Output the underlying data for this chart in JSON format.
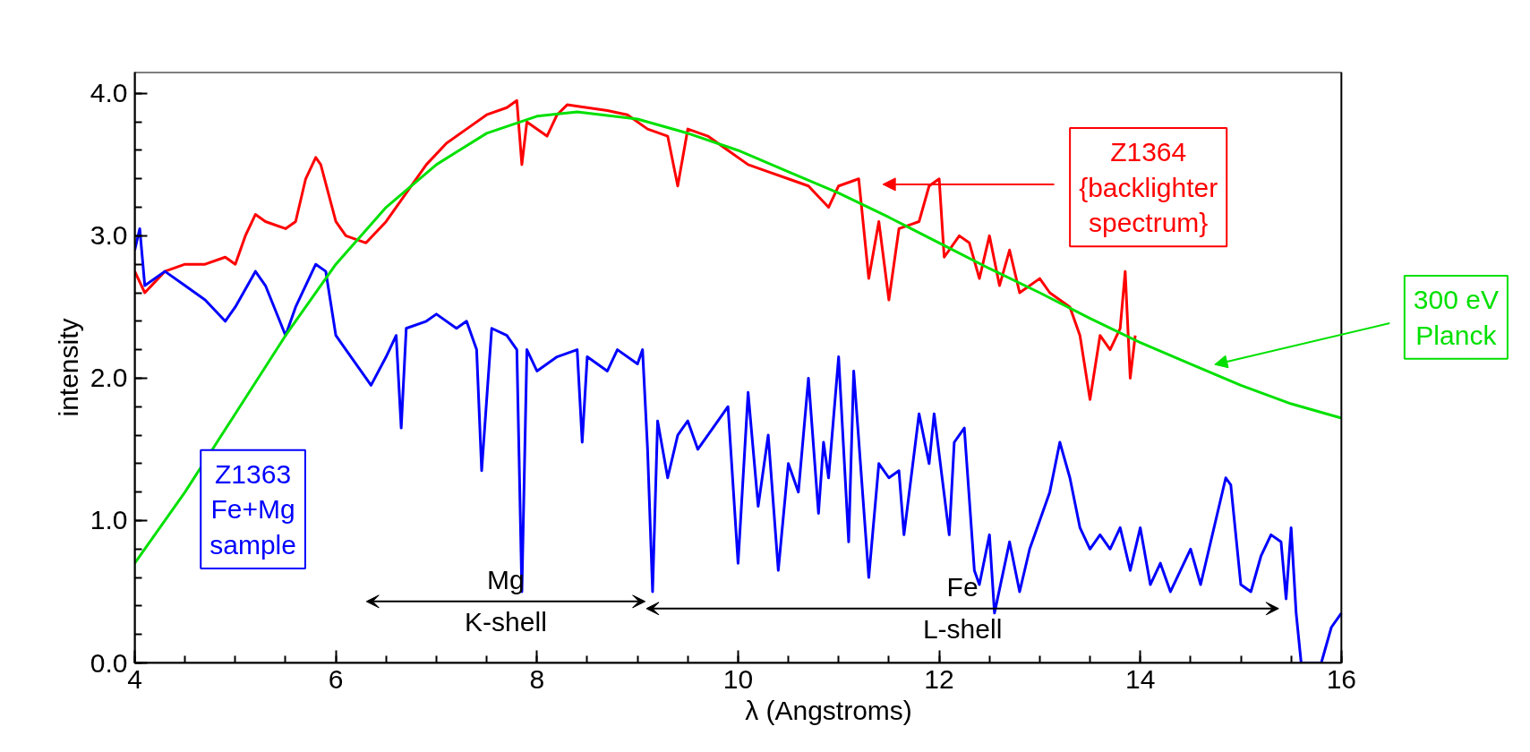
{
  "chart_data": {
    "type": "line",
    "xlabel": "λ (Angstroms)",
    "ylabel": "intensity",
    "xlim": [
      4,
      16
    ],
    "ylim": [
      0,
      4.15
    ],
    "xticks": [
      4,
      6,
      8,
      10,
      12,
      14,
      16
    ],
    "yticks": [
      {
        "value": 0,
        "label": "0.0"
      },
      {
        "value": 1,
        "label": "1.0"
      },
      {
        "value": 2,
        "label": "2.0"
      },
      {
        "value": 3,
        "label": "3.0"
      },
      {
        "value": 4,
        "label": "4.0"
      }
    ],
    "grid": false,
    "marker": "none",
    "line_style": "solid",
    "series": [
      {
        "color": "#ff0000",
        "x": [
          4.0,
          4.1,
          4.3,
          4.5,
          4.7,
          4.9,
          5.0,
          5.1,
          5.2,
          5.3,
          5.5,
          5.6,
          5.7,
          5.8,
          5.85,
          6.0,
          6.1,
          6.3,
          6.5,
          6.7,
          6.9,
          7.1,
          7.3,
          7.5,
          7.7,
          7.8,
          7.85,
          7.9,
          8.1,
          8.2,
          8.3,
          8.5,
          8.7,
          8.9,
          9.1,
          9.3,
          9.4,
          9.5,
          9.7,
          9.9,
          10.1,
          10.3,
          10.5,
          10.7,
          10.9,
          11.0,
          11.2,
          11.3,
          11.4,
          11.5,
          11.6,
          11.8,
          11.9,
          12.0,
          12.05,
          12.2,
          12.3,
          12.4,
          12.5,
          12.6,
          12.7,
          12.8,
          13.0,
          13.1,
          13.3,
          13.4,
          13.5,
          13.6,
          13.7,
          13.8,
          13.85,
          13.9,
          13.95
        ],
        "values": [
          2.75,
          2.6,
          2.75,
          2.8,
          2.8,
          2.85,
          2.8,
          3.0,
          3.15,
          3.1,
          3.05,
          3.1,
          3.4,
          3.55,
          3.5,
          3.1,
          3.0,
          2.95,
          3.1,
          3.3,
          3.5,
          3.65,
          3.75,
          3.85,
          3.9,
          3.95,
          3.5,
          3.8,
          3.7,
          3.85,
          3.92,
          3.9,
          3.88,
          3.85,
          3.75,
          3.7,
          3.35,
          3.75,
          3.7,
          3.6,
          3.5,
          3.45,
          3.4,
          3.35,
          3.2,
          3.35,
          3.4,
          2.7,
          3.1,
          2.55,
          3.05,
          3.1,
          3.35,
          3.4,
          2.85,
          3.0,
          2.95,
          2.7,
          3.0,
          2.65,
          2.9,
          2.6,
          2.7,
          2.6,
          2.5,
          2.3,
          1.85,
          2.3,
          2.2,
          2.35,
          2.75,
          2.0,
          2.3
        ]
      },
      {
        "color": "#0000ff",
        "x": [
          4.0,
          4.05,
          4.1,
          4.3,
          4.5,
          4.7,
          4.9,
          5.0,
          5.2,
          5.3,
          5.5,
          5.6,
          5.8,
          5.9,
          6.0,
          6.1,
          6.3,
          6.35,
          6.5,
          6.6,
          6.65,
          6.7,
          6.9,
          7.0,
          7.2,
          7.3,
          7.4,
          7.45,
          7.55,
          7.7,
          7.8,
          7.85,
          7.9,
          8.0,
          8.2,
          8.4,
          8.45,
          8.5,
          8.7,
          8.8,
          9.0,
          9.05,
          9.1,
          9.15,
          9.2,
          9.3,
          9.4,
          9.5,
          9.6,
          9.8,
          9.9,
          10.0,
          10.1,
          10.2,
          10.3,
          10.4,
          10.5,
          10.6,
          10.7,
          10.8,
          10.85,
          10.9,
          11.0,
          11.1,
          11.15,
          11.3,
          11.4,
          11.5,
          11.6,
          11.65,
          11.8,
          11.9,
          11.95,
          12.1,
          12.15,
          12.25,
          12.35,
          12.4,
          12.5,
          12.55,
          12.7,
          12.8,
          12.9,
          13.1,
          13.2,
          13.3,
          13.4,
          13.5,
          13.6,
          13.7,
          13.8,
          13.9,
          14.0,
          14.1,
          14.2,
          14.3,
          14.5,
          14.6,
          14.7,
          14.85,
          14.9,
          15.0,
          15.1,
          15.2,
          15.3,
          15.4,
          15.45,
          15.5,
          15.55,
          15.6,
          15.7,
          15.8,
          15.9,
          16.0
        ],
        "values": [
          2.9,
          3.05,
          2.65,
          2.75,
          2.65,
          2.55,
          2.4,
          2.5,
          2.75,
          2.65,
          2.3,
          2.5,
          2.8,
          2.75,
          2.3,
          2.2,
          2.0,
          1.95,
          2.15,
          2.3,
          1.65,
          2.35,
          2.4,
          2.45,
          2.35,
          2.4,
          2.2,
          1.35,
          2.35,
          2.3,
          2.2,
          0.5,
          2.2,
          2.05,
          2.15,
          2.2,
          1.55,
          2.15,
          2.05,
          2.2,
          2.1,
          2.2,
          1.5,
          0.5,
          1.7,
          1.3,
          1.6,
          1.7,
          1.5,
          1.7,
          1.8,
          0.7,
          1.9,
          1.1,
          1.6,
          0.65,
          1.4,
          1.2,
          2.0,
          1.05,
          1.55,
          1.3,
          2.15,
          0.85,
          2.05,
          0.6,
          1.4,
          1.3,
          1.35,
          0.9,
          1.75,
          1.4,
          1.75,
          0.9,
          1.55,
          1.65,
          0.65,
          0.55,
          0.9,
          0.35,
          0.85,
          0.5,
          0.8,
          1.2,
          1.55,
          1.3,
          0.95,
          0.8,
          0.9,
          0.8,
          0.95,
          0.65,
          0.95,
          0.55,
          0.7,
          0.5,
          0.8,
          0.55,
          0.85,
          1.3,
          1.25,
          0.55,
          0.5,
          0.75,
          0.9,
          0.85,
          0.45,
          0.95,
          0.35,
          0.0,
          0.0,
          0.0,
          0.25,
          0.35
        ]
      },
      {
        "color": "#00e000",
        "x": [
          4,
          4.5,
          5,
          5.5,
          6,
          6.5,
          7,
          7.5,
          8,
          8.4,
          9,
          9.5,
          10,
          10.5,
          11,
          11.5,
          12,
          12.5,
          13,
          13.5,
          14,
          14.5,
          15,
          15.5,
          16
        ],
        "values": [
          0.7,
          1.2,
          1.75,
          2.3,
          2.8,
          3.2,
          3.5,
          3.72,
          3.84,
          3.87,
          3.82,
          3.72,
          3.6,
          3.45,
          3.3,
          3.13,
          2.95,
          2.77,
          2.6,
          2.42,
          2.25,
          2.1,
          1.95,
          1.82,
          1.72
        ]
      }
    ],
    "annotations": [
      "Z1364\n{backlighter\nspectrum}",
      "Z1363\nFe+Mg\nsample",
      "300 eV\nPlanck",
      "Mg\nK-shell",
      "Fe\nL-shell"
    ]
  }
}
